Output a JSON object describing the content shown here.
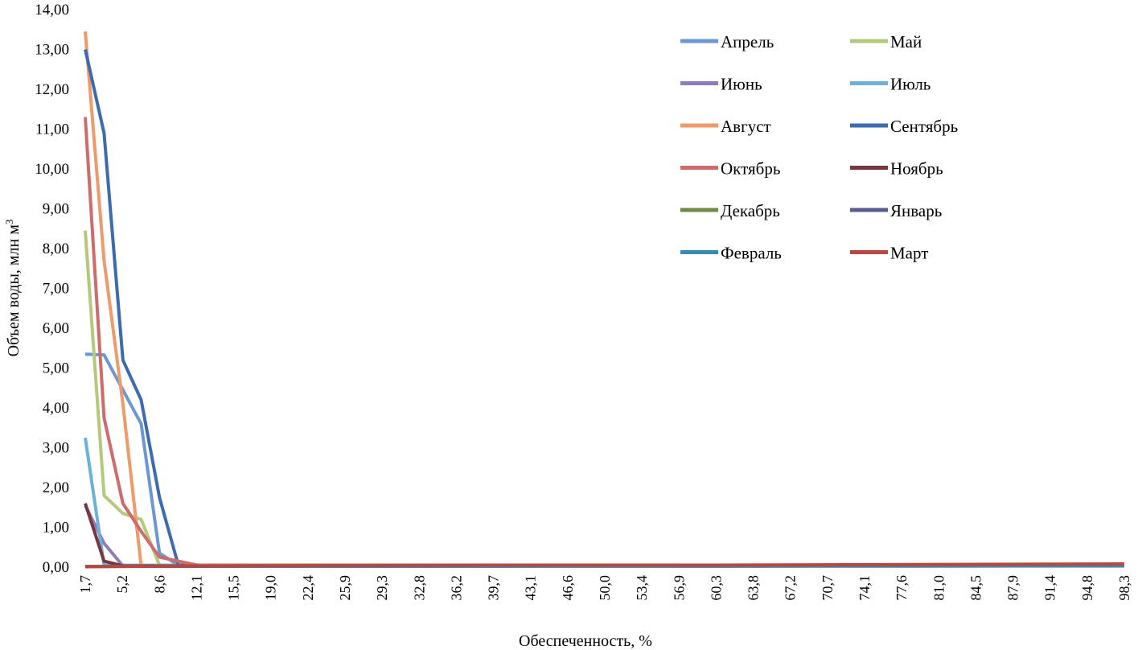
{
  "chart_data": {
    "type": "line",
    "title": "",
    "xlabel": "Обеспеченность, %",
    "ylabel": "Объем воды, млн м",
    "ylabel_sup": "3",
    "ylim": [
      0,
      14
    ],
    "y_ticks": [
      "0,00",
      "1,00",
      "2,00",
      "3,00",
      "4,00",
      "5,00",
      "6,00",
      "7,00",
      "8,00",
      "9,00",
      "10,00",
      "11,00",
      "12,00",
      "13,00",
      "14,00"
    ],
    "x_ticks": [
      "1,7",
      "5,2",
      "8,6",
      "12,1",
      "15,5",
      "19,0",
      "22,4",
      "25,9",
      "29,3",
      "32,8",
      "36,2",
      "39,7",
      "43,1",
      "46,6",
      "50,0",
      "53,4",
      "56,9",
      "60,3",
      "63,8",
      "67,2",
      "70,7",
      "74,1",
      "77,6",
      "81,0",
      "84,5",
      "87,9",
      "91,4",
      "94,8",
      "98,3"
    ],
    "grid": false,
    "legend": "top-right",
    "series": [
      {
        "name": "Апрель",
        "color": "#6c97d3",
        "points": [
          [
            1.7,
            5.35
          ],
          [
            3.45,
            5.33
          ],
          [
            5.2,
            4.45
          ],
          [
            6.9,
            3.6
          ],
          [
            8.6,
            0.35
          ],
          [
            10.35,
            0.05
          ],
          [
            12.1,
            0.03
          ],
          [
            98.3,
            0.03
          ]
        ]
      },
      {
        "name": "Май",
        "color": "#b3c97c",
        "points": [
          [
            1.7,
            8.45
          ],
          [
            3.45,
            1.8
          ],
          [
            5.2,
            1.35
          ],
          [
            6.9,
            1.2
          ],
          [
            8.6,
            0.05
          ],
          [
            12.1,
            0.03
          ],
          [
            98.3,
            0.03
          ]
        ]
      },
      {
        "name": "Июнь",
        "color": "#8c7cb8",
        "points": [
          [
            1.7,
            1.55
          ],
          [
            3.45,
            0.6
          ],
          [
            5.2,
            0.03
          ],
          [
            98.3,
            0.03
          ]
        ]
      },
      {
        "name": "Июль",
        "color": "#6cb0dc",
        "points": [
          [
            1.7,
            3.25
          ],
          [
            3.45,
            0.05
          ],
          [
            98.3,
            0.03
          ]
        ]
      },
      {
        "name": "Август",
        "color": "#ee9a6a",
        "points": [
          [
            1.7,
            13.45
          ],
          [
            3.45,
            7.7
          ],
          [
            5.2,
            4.1
          ],
          [
            6.9,
            0.03
          ],
          [
            98.3,
            0.03
          ]
        ]
      },
      {
        "name": "Сентябрь",
        "color": "#3d6bb0",
        "points": [
          [
            1.7,
            13.0
          ],
          [
            3.45,
            10.9
          ],
          [
            5.2,
            5.2
          ],
          [
            6.9,
            4.2
          ],
          [
            8.6,
            1.75
          ],
          [
            10.35,
            0.05
          ],
          [
            12.1,
            0.03
          ],
          [
            98.3,
            0.03
          ]
        ]
      },
      {
        "name": "Октябрь",
        "color": "#cf6b6b",
        "points": [
          [
            1.7,
            11.3
          ],
          [
            3.45,
            3.75
          ],
          [
            5.2,
            1.6
          ],
          [
            6.9,
            0.9
          ],
          [
            8.6,
            0.25
          ],
          [
            10.35,
            0.15
          ],
          [
            12.1,
            0.05
          ],
          [
            98.3,
            0.05
          ]
        ]
      },
      {
        "name": "Ноябрь",
        "color": "#7a3640",
        "points": [
          [
            1.7,
            1.6
          ],
          [
            3.45,
            0.15
          ],
          [
            5.2,
            0.03
          ],
          [
            98.3,
            0.03
          ]
        ]
      },
      {
        "name": "Декабрь",
        "color": "#6f8a45",
        "points": [
          [
            1.7,
            0.02
          ],
          [
            98.3,
            0.03
          ]
        ]
      },
      {
        "name": "Январь",
        "color": "#5b5a95",
        "points": [
          [
            1.7,
            0.02
          ],
          [
            98.3,
            0.03
          ]
        ]
      },
      {
        "name": "Февраль",
        "color": "#3b8aae",
        "points": [
          [
            1.7,
            0.02
          ],
          [
            98.3,
            0.04
          ]
        ]
      },
      {
        "name": "Март",
        "color": "#b8483d",
        "points": [
          [
            1.7,
            0.01
          ],
          [
            12.1,
            0.03
          ],
          [
            40,
            0.05
          ],
          [
            60,
            0.05
          ],
          [
            98.3,
            0.08
          ]
        ]
      }
    ]
  }
}
